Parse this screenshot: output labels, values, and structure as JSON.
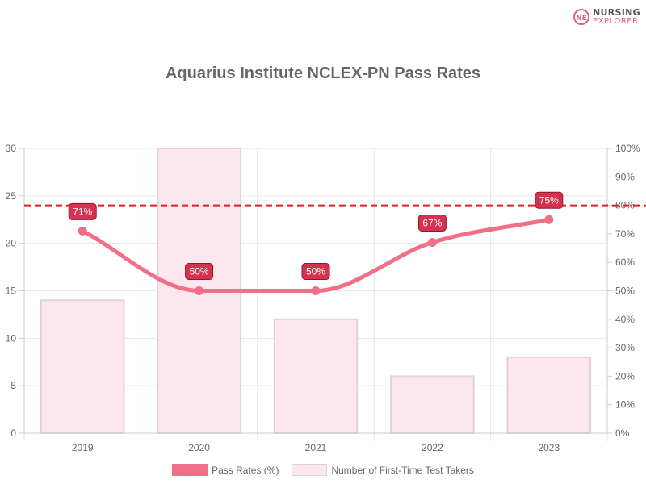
{
  "brand": {
    "line1": "NURSING",
    "line2": "EXPLORER",
    "mark": "NE"
  },
  "chart_data": {
    "type": "bar",
    "title": "Aquarius Institute NCLEX-PN Pass Rates",
    "categories": [
      "2019",
      "2020",
      "2021",
      "2022",
      "2023"
    ],
    "series": [
      {
        "name": "Pass Rates (%)",
        "type": "line",
        "axis": "right",
        "values": [
          71,
          50,
          50,
          67,
          75
        ],
        "labels": [
          "71%",
          "50%",
          "50%",
          "67%",
          "75%"
        ],
        "color": "#f07088"
      },
      {
        "name": "Number of First-Time Test Takers",
        "type": "bar",
        "axis": "left",
        "values": [
          14,
          30,
          12,
          6,
          8
        ],
        "color": "#fbe7ed"
      }
    ],
    "y_left": {
      "min": 0,
      "max": 30,
      "ticks": [
        "0",
        "5",
        "10",
        "15",
        "20",
        "25",
        "30"
      ]
    },
    "y_right": {
      "min": 0,
      "max": 100,
      "ticks": [
        "0%",
        "10%",
        "20%",
        "30%",
        "40%",
        "50%",
        "60%",
        "70%",
        "80%",
        "90%",
        "100%"
      ]
    },
    "reference_line": {
      "value": 80,
      "axis": "right",
      "color": "#e02020",
      "style": "dashed"
    },
    "grid": true,
    "legend_position": "bottom"
  }
}
